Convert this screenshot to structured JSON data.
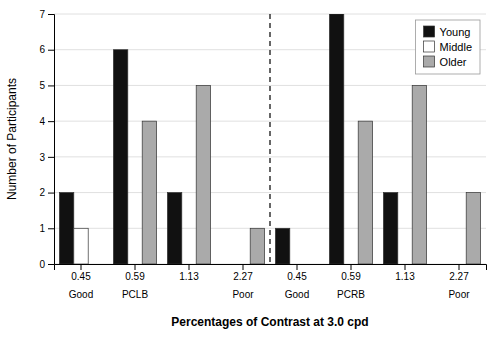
{
  "chart_data": {
    "type": "bar",
    "xlabel": "Percentages of Contrast at 3.0 cpd",
    "ylabel": "Number of Participants",
    "categories": [
      "0.45",
      "0.59",
      "1.13",
      "2.27",
      "0.45",
      "0.59",
      "1.13",
      "2.27"
    ],
    "annotations": [
      "Good",
      "PCLB",
      null,
      "Poor",
      "Good",
      "PCRB",
      null,
      "Poor"
    ],
    "series": [
      {
        "name": "Young",
        "color": "#111111",
        "values": [
          2,
          6,
          2,
          0,
          1,
          7,
          2,
          0
        ]
      },
      {
        "name": "Middle",
        "color": "#ffffff",
        "values": [
          1,
          0,
          0,
          0,
          0,
          0,
          0,
          0
        ]
      },
      {
        "name": "Older",
        "color": "#aaaaaa",
        "values": [
          0,
          4,
          5,
          1,
          0,
          4,
          5,
          2
        ]
      }
    ],
    "ylim": [
      0,
      7
    ],
    "yticks": [
      0,
      1,
      2,
      3,
      4,
      5,
      6,
      7
    ],
    "grid": true,
    "legend": "top-right"
  }
}
